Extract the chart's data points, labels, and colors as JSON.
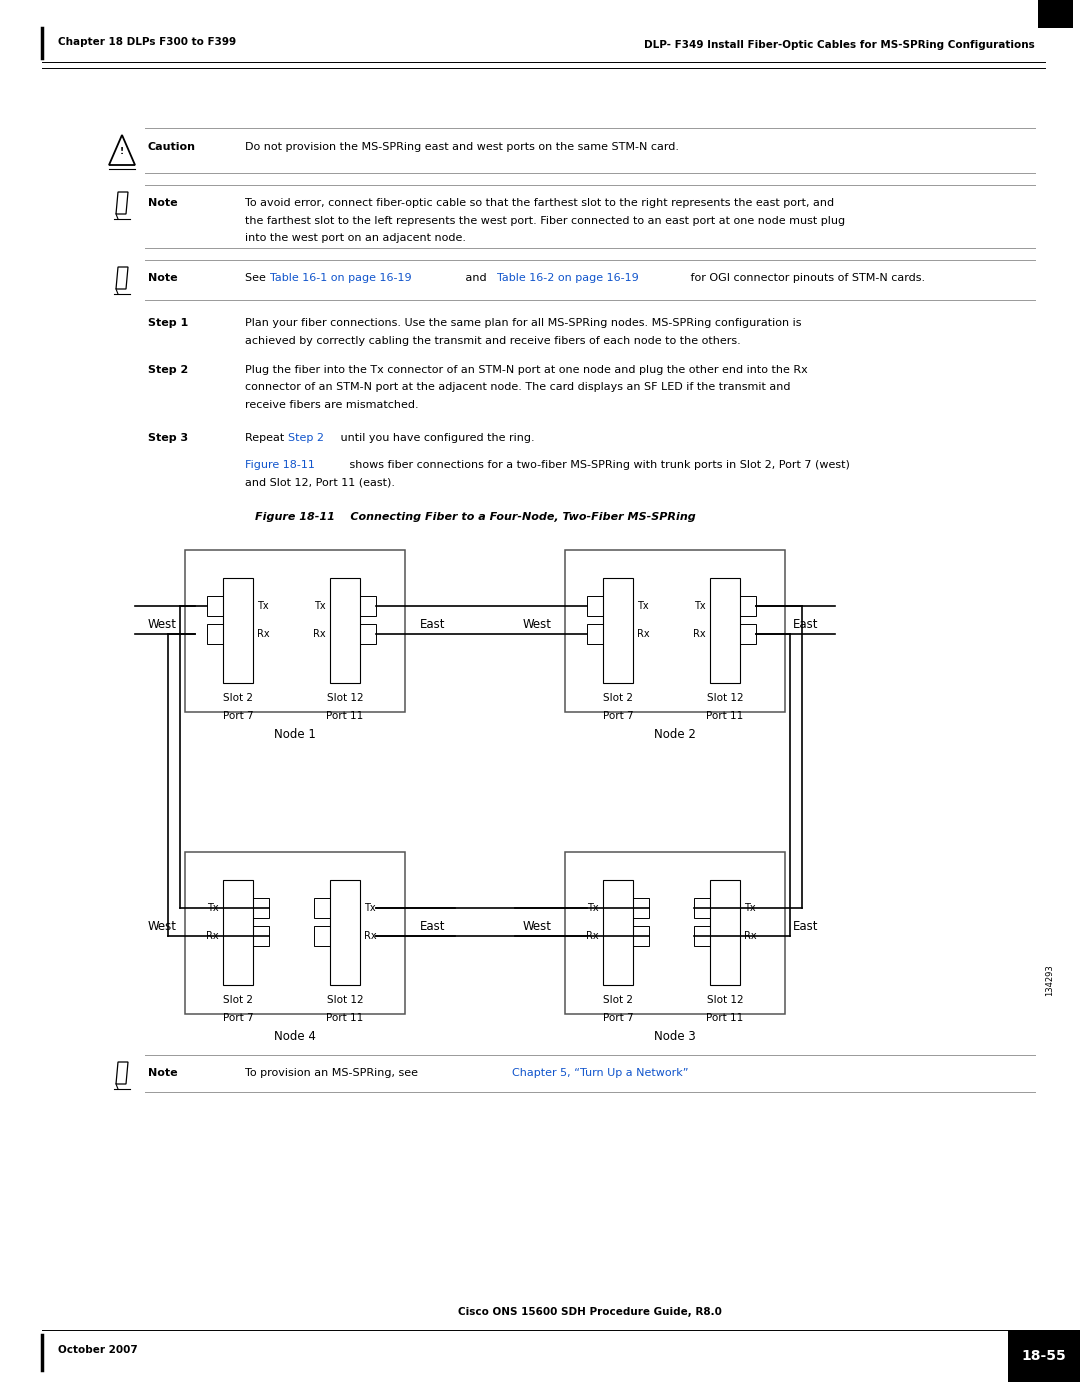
{
  "page_width": 10.8,
  "page_height": 13.97,
  "bg_color": "#ffffff",
  "header_left": "Chapter 18 DLPs F300 to F399",
  "header_right": "DLP- F349 Install Fiber-Optic Cables for MS-SPRing Configurations",
  "footer_left": "October 2007",
  "footer_center": "Cisco ONS 15600 SDH Procedure Guide, R8.0",
  "footer_right": "18-55",
  "caution_text": "Do not provision the MS-SPRing east and west ports on the same STM-N card.",
  "note1_line1": "To avoid error, connect fiber-optic cable so that the farthest slot to the right represents the east port, and",
  "note1_line2": "the farthest slot to the left represents the west port. Fiber connected to an east port at one node must plug",
  "note1_line3": "into the west port on an adjacent node.",
  "note2_link1": "Table 16-1 on page 16-19",
  "note2_link2": "Table 16-2 on page 16-19",
  "step1_text_l1": "Plan your fiber connections. Use the same plan for all MS-SPRing nodes. MS-SPRing configuration is",
  "step1_text_l2": "achieved by correctly cabling the transmit and receive fibers of each node to the others.",
  "step2_text_l1": "Plug the fiber into the Tx connector of an STM-N port at one node and plug the other end into the Rx",
  "step2_text_l2": "connector of an STM-N port at the adjacent node. The card displays an SF LED if the transmit and",
  "step2_text_l3": "receive fibers are mismatched.",
  "step3_text_after": " until you have configured the ring.",
  "fig_ref_l1": " shows fiber connections for a two-fiber MS-SPRing with trunk ports in Slot 2, Port 7 (west)",
  "fig_ref_l2": "and Slot 12, Port 11 (east).",
  "fig_title": "Figure 18-11",
  "fig_caption": "Connecting Fiber to a Four-Node, Two-Fiber MS-SPRing",
  "note3_link": "Chapter 5, “Turn Up a Network”",
  "watermark_text": "134293",
  "link_color": "#1155CC"
}
